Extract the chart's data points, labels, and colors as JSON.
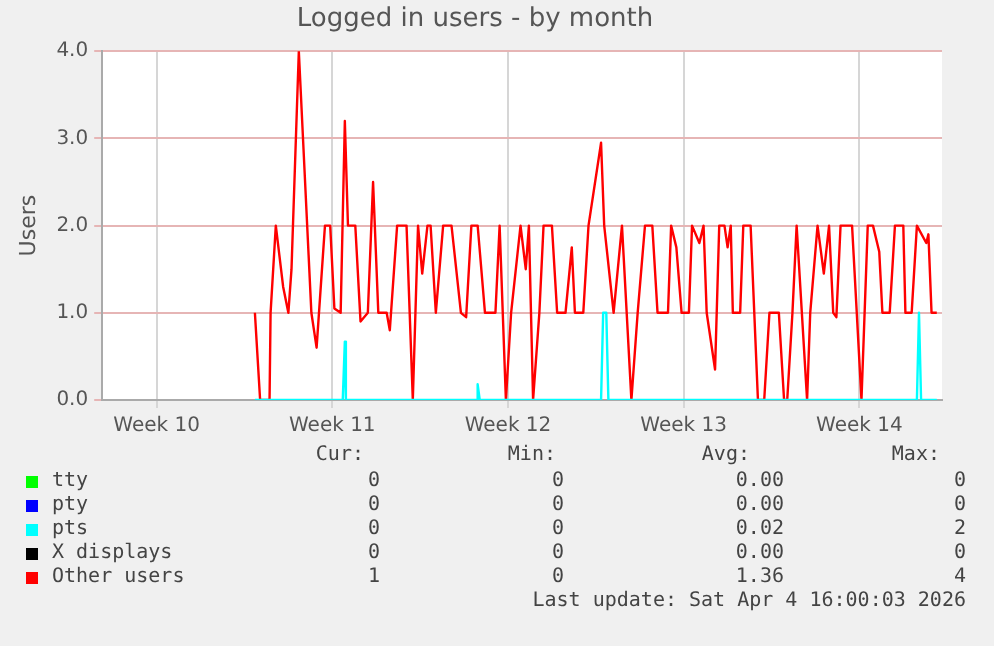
{
  "chart_data": {
    "type": "line",
    "title": "Logged in users - by month",
    "ylabel": "Users",
    "xlim": [
      "2026-03-02T10:00",
      "2026-04-04T21:00"
    ],
    "xticks": [
      {
        "value": "2026-03-04T14:00",
        "label": "Week 10"
      },
      {
        "value": "2026-03-11T14:00",
        "label": "Week 11"
      },
      {
        "value": "2026-03-18T14:00",
        "label": "Week 12"
      },
      {
        "value": "2026-03-25T14:00",
        "label": "Week 13"
      },
      {
        "value": "2026-04-01T14:00",
        "label": "Week 14"
      }
    ],
    "ylim": [
      0,
      4
    ],
    "yticks": [
      {
        "value": 0,
        "label": "0.0"
      },
      {
        "value": 1,
        "label": "1.0"
      },
      {
        "value": 2,
        "label": "2.0"
      },
      {
        "value": 3,
        "label": "3.0"
      },
      {
        "value": 4,
        "label": "4.0"
      }
    ],
    "grid": true,
    "legend": "bottom",
    "marker": "none",
    "line_style": "solid",
    "series": [
      {
        "name": "tty",
        "color": "#00ff00"
      },
      {
        "name": "pty",
        "color": "#0000ff"
      },
      {
        "name": "pts",
        "color": "#00ffff",
        "x": [
          "2026-03-08T12:00",
          "2026-03-12T00:00",
          "2026-03-12T02:00",
          "2026-03-12T03:00",
          "2026-03-17T08:00",
          "2026-03-17T09:00",
          "2026-03-17T11:00",
          "2026-03-22T07:00",
          "2026-03-22T09:00",
          "2026-03-22T12:00",
          "2026-03-22T14:00",
          "2026-04-03T21:00",
          "2026-04-03T23:00",
          "2026-04-04T01:00",
          "2026-04-04T16:00"
        ],
        "values": [
          0,
          0,
          0.67,
          0,
          0,
          0.18,
          0,
          0,
          1,
          1,
          0,
          0,
          1,
          0,
          0
        ]
      },
      {
        "name": "X displays",
        "color": "#000000"
      },
      {
        "name": "Other users",
        "color": "#ff0000",
        "x": [
          "2026-03-08T12:00",
          "2026-03-08T17:00",
          "2026-03-09T02:00",
          "2026-03-09T03:00",
          "2026-03-09T08:00",
          "2026-03-09T15:00",
          "2026-03-09T20:00",
          "2026-03-09T23:00",
          "2026-03-10T06:00",
          "2026-03-10T18:00",
          "2026-03-10T23:00",
          "2026-03-11T07:00",
          "2026-03-11T12:00",
          "2026-03-11T16:00",
          "2026-03-11T22:00",
          "2026-03-12T02:00",
          "2026-03-12T05:00",
          "2026-03-12T12:00",
          "2026-03-12T17:00",
          "2026-03-13T00:00",
          "2026-03-13T05:00",
          "2026-03-13T10:00",
          "2026-03-13T18:00",
          "2026-03-13T21:00",
          "2026-03-14T04:00",
          "2026-03-14T13:00",
          "2026-03-14T19:00",
          "2026-03-15T00:00",
          "2026-03-15T04:00",
          "2026-03-15T09:00",
          "2026-03-15T12:00",
          "2026-03-15T17:00",
          "2026-03-16T00:00",
          "2026-03-16T08:00",
          "2026-03-16T17:00",
          "2026-03-16T22:00",
          "2026-03-17T03:00",
          "2026-03-17T09:00",
          "2026-03-17T16:00",
          "2026-03-18T02:00",
          "2026-03-18T06:00",
          "2026-03-18T12:00",
          "2026-03-18T17:00",
          "2026-03-19T02:00",
          "2026-03-19T07:00",
          "2026-03-19T10:00",
          "2026-03-19T14:00",
          "2026-03-19T20:00",
          "2026-03-20T00:00",
          "2026-03-20T08:00",
          "2026-03-20T13:00",
          "2026-03-20T21:00",
          "2026-03-21T03:00",
          "2026-03-21T06:00",
          "2026-03-21T14:00",
          "2026-03-21T19:00",
          "2026-03-22T07:00",
          "2026-03-22T10:00",
          "2026-03-22T19:00",
          "2026-03-23T03:00",
          "2026-03-23T12:00",
          "2026-03-23T18:00",
          "2026-03-24T01:00",
          "2026-03-24T08:00",
          "2026-03-24T13:00",
          "2026-03-24T23:00",
          "2026-03-25T02:00",
          "2026-03-25T07:00",
          "2026-03-25T12:00",
          "2026-03-25T19:00",
          "2026-03-25T22:00",
          "2026-03-26T05:00",
          "2026-03-26T09:00",
          "2026-03-26T12:00",
          "2026-03-26T20:00",
          "2026-03-27T00:00",
          "2026-03-27T05:00",
          "2026-03-27T08:00",
          "2026-03-27T11:00",
          "2026-03-27T13:00",
          "2026-03-27T20:00",
          "2026-03-27T23:00",
          "2026-03-28T06:00",
          "2026-03-28T13:00",
          "2026-03-28T19:00",
          "2026-03-29T00:00",
          "2026-03-29T09:00",
          "2026-03-29T14:00",
          "2026-03-29T17:00",
          "2026-03-29T22:00",
          "2026-03-30T02:00",
          "2026-03-30T12:00",
          "2026-03-30T15:00",
          "2026-03-30T22:00",
          "2026-03-31T04:00",
          "2026-03-31T09:00",
          "2026-03-31T13:00",
          "2026-03-31T16:00",
          "2026-03-31T20:00",
          "2026-04-01T07:00",
          "2026-04-01T16:00",
          "2026-04-01T22:00",
          "2026-04-02T03:00",
          "2026-04-02T09:00",
          "2026-04-02T12:00",
          "2026-04-02T19:00",
          "2026-04-03T00:00",
          "2026-04-03T08:00",
          "2026-04-03T10:00",
          "2026-04-03T16:00",
          "2026-04-03T21:00",
          "2026-04-04T06:00",
          "2026-04-04T08:00",
          "2026-04-04T11:00",
          "2026-04-04T16:00"
        ],
        "values": [
          1,
          0,
          0,
          1,
          2,
          1.3,
          1,
          1.5,
          4,
          1,
          0.6,
          2,
          2,
          1.05,
          1,
          3.2,
          2,
          2,
          0.9,
          1,
          2.5,
          1,
          1,
          0.8,
          2,
          2,
          0,
          2,
          1.45,
          2,
          2,
          1,
          2,
          2,
          1,
          0.95,
          2,
          2,
          1,
          1,
          2,
          0,
          1,
          2,
          1.5,
          2,
          0,
          1,
          2,
          2,
          1,
          1,
          1.75,
          1,
          1,
          2,
          2.95,
          2,
          1,
          2,
          0,
          1,
          2,
          2,
          1,
          1,
          2,
          1.75,
          1,
          1,
          2,
          1.8,
          2,
          1,
          0.35,
          2,
          2,
          1.75,
          2,
          1,
          1,
          2,
          2,
          0,
          0,
          1,
          1,
          0,
          0,
          1,
          2,
          0,
          1,
          2,
          1.45,
          2,
          1,
          0.95,
          2,
          2,
          0,
          2,
          2,
          1.7,
          1,
          1,
          2,
          2,
          1,
          1,
          2,
          1.8,
          1.9,
          1,
          1
        ]
      }
    ],
    "annotations": [
      "Cur:",
      "Min:",
      "Avg:",
      "Max:",
      "0",
      "0",
      "0.00",
      "0",
      "0",
      "0",
      "0.00",
      "0",
      "0",
      "0",
      "0.02",
      "2",
      "0",
      "0",
      "0.00",
      "0",
      "1",
      "0",
      "1.36",
      "4",
      "Last update: Sat Apr  4 16:00:03 2026"
    ]
  }
}
